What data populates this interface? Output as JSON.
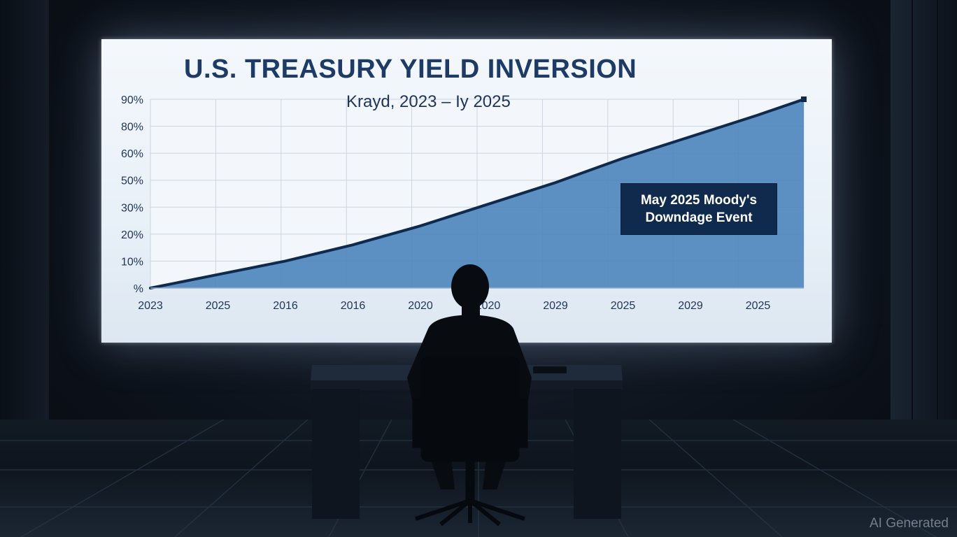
{
  "screen": {
    "title": "U.S. TREASURY YIELD INVERSION",
    "subtitle": "Krayd, 2023 – Iy 2025"
  },
  "callout": {
    "line1": "May 2025 Moody's",
    "line2": "Downdage Event"
  },
  "watermark": "AI Generated",
  "colors": {
    "screen_bg": "#eef4fa",
    "title": "#1e3a66",
    "area_fill": "#4f86bd",
    "line": "#0f2a4c",
    "callout_bg": "#0f2a4c"
  },
  "chart_data": {
    "type": "area",
    "title": "U.S. TREASURY YIELD INVERSION",
    "subtitle": "Krayd, 2023 – Iy 2025",
    "y_ticks": [
      "%",
      "10%",
      "20%",
      "30%",
      "50%",
      "60%",
      "80%",
      "90%"
    ],
    "x_ticks": [
      "2023",
      "2025",
      "2016",
      "2016",
      "2020",
      "2020",
      "2029",
      "2025",
      "2029",
      "2025"
    ],
    "x": [
      0,
      1,
      2,
      3,
      4,
      5,
      6,
      7,
      8,
      9,
      9.7
    ],
    "y_index": [
      0,
      0.5,
      1,
      1.6,
      2.3,
      3.1,
      3.9,
      4.8,
      5.6,
      6.4,
      7.0
    ],
    "ylim_index": [
      0,
      7
    ],
    "grid": true,
    "annotations": [
      {
        "text": "May 2025 Moody's Downdage Event",
        "position": "right"
      }
    ]
  }
}
